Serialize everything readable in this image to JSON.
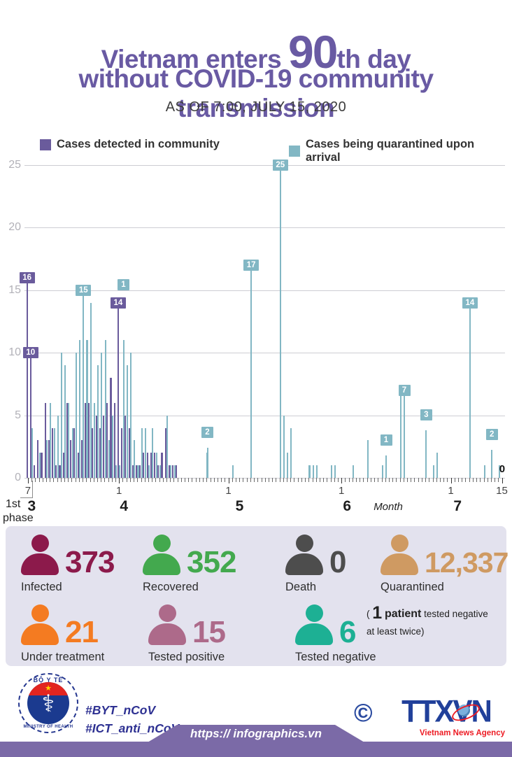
{
  "title": {
    "prefix": "Vietnam enters ",
    "big": "90",
    "suffix": "th day",
    "line2": "without COVID-19 community transmission"
  },
  "subtitle": "AS OF 7:00, JULY 15, 2020",
  "chart_data": {
    "type": "bar",
    "x_description": "Daily new COVID-19 cases in Vietnam, one bar pair per day from March 7 to July 15, 2020",
    "series": [
      {
        "name": "Cases detected in community",
        "color": "#6a5b9c",
        "values": [
          16,
          10,
          1,
          3,
          2,
          6,
          3,
          4,
          1,
          1,
          2,
          6,
          3,
          4,
          2,
          3,
          6,
          6,
          4,
          5,
          4,
          5,
          6,
          8,
          6,
          14,
          4,
          5,
          4,
          1,
          1,
          1,
          2,
          2,
          2,
          2,
          1,
          2,
          4,
          1,
          1,
          1,
          0,
          0,
          0,
          0,
          0,
          0,
          0,
          0,
          0,
          0,
          0,
          0,
          0,
          0,
          0,
          0,
          0,
          0,
          0,
          0,
          0,
          0,
          0,
          0,
          0,
          0,
          0,
          0,
          0,
          0,
          0,
          0,
          0,
          0,
          0,
          0,
          0,
          0,
          0,
          0,
          0,
          0,
          0,
          0,
          0,
          0,
          0,
          0,
          0,
          0,
          0,
          0,
          0,
          0,
          0,
          0,
          0,
          0,
          0,
          0,
          0,
          0,
          0,
          0,
          0,
          0,
          0,
          0,
          0,
          0,
          0,
          0,
          0,
          0,
          0,
          0,
          0,
          0,
          0,
          0,
          0,
          0,
          0,
          0,
          0,
          0,
          0,
          0,
          0
        ]
      },
      {
        "name": "Cases being quarantined upon arrival",
        "color": "#82b7c4",
        "values": [
          0,
          4,
          0,
          2,
          0,
          3,
          6,
          4,
          5,
          10,
          9,
          6,
          4,
          10,
          11,
          15,
          11,
          14,
          6,
          9,
          10,
          11,
          3,
          5,
          1,
          1,
          11,
          9,
          10,
          3,
          1,
          4,
          4,
          1,
          4,
          2,
          1,
          0,
          5,
          1,
          1,
          0,
          0,
          0,
          0,
          0,
          0,
          0,
          0,
          2,
          0,
          0,
          0,
          0,
          0,
          0,
          1,
          0,
          0,
          0,
          0,
          17,
          0,
          0,
          0,
          0,
          0,
          0,
          0,
          25,
          5,
          2,
          4,
          0,
          0,
          0,
          0,
          1,
          1,
          1,
          0,
          0,
          0,
          1,
          1,
          0,
          0,
          0,
          0,
          1,
          0,
          0,
          0,
          3,
          0,
          0,
          0,
          1,
          1,
          0,
          0,
          0,
          7,
          7,
          0,
          0,
          0,
          0,
          0,
          3,
          0,
          1,
          2,
          0,
          0,
          0,
          0,
          0,
          0,
          0,
          0,
          14,
          0,
          0,
          0,
          1,
          0,
          2,
          0,
          1,
          0
        ]
      }
    ],
    "ylim": [
      0,
      25
    ],
    "yticks": [
      0,
      5,
      10,
      15,
      20,
      25
    ],
    "grid": true,
    "legend_position": "top",
    "x_tick_labels": [
      {
        "index": 0,
        "label": "7"
      },
      {
        "index": 25,
        "label": "1"
      },
      {
        "index": 55,
        "label": "1"
      },
      {
        "index": 86,
        "label": "1"
      },
      {
        "index": 116,
        "label": "1"
      },
      {
        "index": 130,
        "label": "15"
      }
    ],
    "month_labels": [
      {
        "index": 1.5,
        "label": "3"
      },
      {
        "index": 26.8,
        "label": "4"
      },
      {
        "index": 58.5,
        "label": "5"
      },
      {
        "index": 88.0,
        "label": "6"
      },
      {
        "index": 118.3,
        "label": "7"
      }
    ],
    "month_axis_word": "Month",
    "annotations": [
      {
        "index": 0,
        "series": 0,
        "label": "16"
      },
      {
        "index": 1,
        "series": 0,
        "label": "10"
      },
      {
        "index": 15,
        "series": 1,
        "label": "15"
      },
      {
        "index": 25,
        "series": 1,
        "label": "1",
        "lift": 15.0,
        "dx": 5
      },
      {
        "index": 25,
        "series": 0,
        "label": "14"
      },
      {
        "index": 49,
        "series": 1,
        "label": "2",
        "lift": 3.2
      },
      {
        "index": 61,
        "series": 1,
        "label": "17"
      },
      {
        "index": 69,
        "series": 1,
        "label": "25"
      },
      {
        "index": 98,
        "series": 1,
        "label": "1",
        "lift": 2.6
      },
      {
        "index": 103,
        "series": 1,
        "label": "7"
      },
      {
        "index": 109,
        "series": 1,
        "label": "3",
        "lift": 4.6
      },
      {
        "index": 121,
        "series": 1,
        "label": "14"
      },
      {
        "index": 127,
        "series": 1,
        "label": "2",
        "lift": 3.0
      },
      {
        "index": 130,
        "series": 1,
        "label": "0",
        "plain": true
      }
    ],
    "phase": {
      "line1": "1st",
      "line2": "phase"
    }
  },
  "stats": {
    "items": [
      {
        "label": "Infected",
        "value": "373",
        "color": "#8c1a4b"
      },
      {
        "label": "Recovered",
        "value": "352",
        "color": "#43a94e"
      },
      {
        "label": "Death",
        "value": "0",
        "color": "#4d4d4d"
      },
      {
        "label": "Quarantined",
        "value": "12,337",
        "color": "#cf9a62"
      },
      {
        "label": "Under treatment",
        "value": "21",
        "color": "#f47b21"
      },
      {
        "label": "Tested positive",
        "value": "15",
        "color": "#ad6a8a"
      },
      {
        "label": "Tested negative",
        "value": "6",
        "color": "#1db094",
        "note_open": "(",
        "note_bold_num": "1",
        "note_bold_word": "patient",
        "note_rest": "tested negative",
        "note_line2": "at least twice)"
      }
    ]
  },
  "footer": {
    "moh_logo": {
      "top_text": "BỘ Y TẾ",
      "bottom_text": "MINISTRY OF HEALTH",
      "star": "★",
      "staff": "⚕"
    },
    "hashtag1": "#BYT_nCoV",
    "hashtag2": "#ICT_anti_nCoV",
    "copyright": "©",
    "agency_logo": "TTXVN",
    "agency_tagline": "Vietnam News Agency",
    "url": "https:// infographics.vn"
  }
}
